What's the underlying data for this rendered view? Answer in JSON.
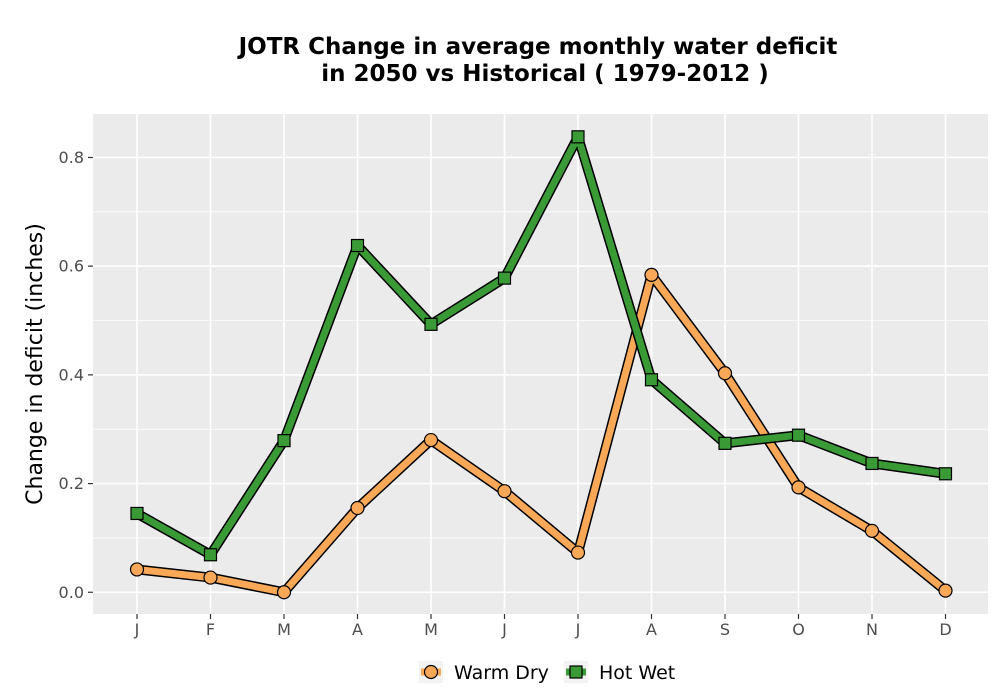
{
  "chart_data": {
    "type": "line",
    "title_line1": "JOTR  Change in average monthly water deficit",
    "title_line2": "in 2050 vs Historical ( 1979-2012 )",
    "xlabel": "",
    "ylabel": "Change in deficit (inches)",
    "categories": [
      "J",
      "F",
      "M",
      "A",
      "M",
      "J",
      "J",
      "A",
      "S",
      "O",
      "N",
      "D"
    ],
    "ylim": [
      -0.04,
      0.88
    ],
    "yticks": [
      0.0,
      0.2,
      0.4,
      0.6,
      0.8
    ],
    "ytick_labels": [
      "0.0",
      "0.2",
      "0.4",
      "0.6",
      "0.8"
    ],
    "grid": true,
    "legend_position": "bottom",
    "series": [
      {
        "name": "Warm Dry",
        "marker": "circle",
        "color": "#f8a857",
        "values": [
          0.042,
          0.027,
          0.0,
          0.155,
          0.28,
          0.186,
          0.073,
          0.584,
          0.403,
          0.193,
          0.113,
          0.003
        ]
      },
      {
        "name": "Hot Wet",
        "marker": "square",
        "color": "#3a9a35",
        "values": [
          0.145,
          0.069,
          0.279,
          0.638,
          0.493,
          0.578,
          0.838,
          0.391,
          0.274,
          0.289,
          0.237,
          0.218
        ]
      }
    ],
    "colors": {
      "panel": "#ebebeb",
      "grid": "#ffffff",
      "outline": "#000000"
    }
  }
}
